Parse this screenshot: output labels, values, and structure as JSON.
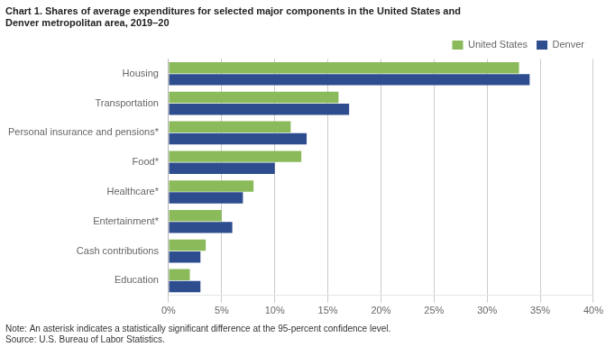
{
  "chart_data": {
    "type": "bar",
    "orientation": "horizontal",
    "title": [
      "Chart 1. Shares of average expenditures for selected major components in the United States and",
      "Denver metropolitan area, 2019–20"
    ],
    "annotations": [
      "Note: An asterisk indicates a statistically significant difference at the 95-percent confidence level.",
      "Source: U.S. Bureau of Labor Statistics."
    ],
    "categories": [
      "Housing",
      "Transportation",
      "Personal insurance and pensions*",
      "Food*",
      "Healthcare*",
      "Entertainment*",
      "Cash contributions",
      "Education"
    ],
    "series": [
      {
        "name": "United States",
        "color": "#8aba5a",
        "values": [
          33.0,
          16.0,
          11.5,
          12.5,
          8.0,
          5.0,
          3.5,
          2.0
        ]
      },
      {
        "name": "Denver",
        "color": "#2d4d8e",
        "values": [
          34.0,
          17.0,
          13.0,
          10.0,
          7.0,
          6.0,
          3.0,
          3.0
        ]
      }
    ],
    "xlim": [
      0,
      40
    ],
    "xticks": [
      {
        "value": 0,
        "label": "0%"
      },
      {
        "value": 5,
        "label": "5%"
      },
      {
        "value": 10,
        "label": "10%"
      },
      {
        "value": 15,
        "label": "15%"
      },
      {
        "value": 20,
        "label": "20%"
      },
      {
        "value": 25,
        "label": "25%"
      },
      {
        "value": 30,
        "label": "30%"
      },
      {
        "value": 35,
        "label": "35%"
      },
      {
        "value": 40,
        "label": "40%"
      }
    ],
    "grid": true,
    "legend": "upper right"
  }
}
